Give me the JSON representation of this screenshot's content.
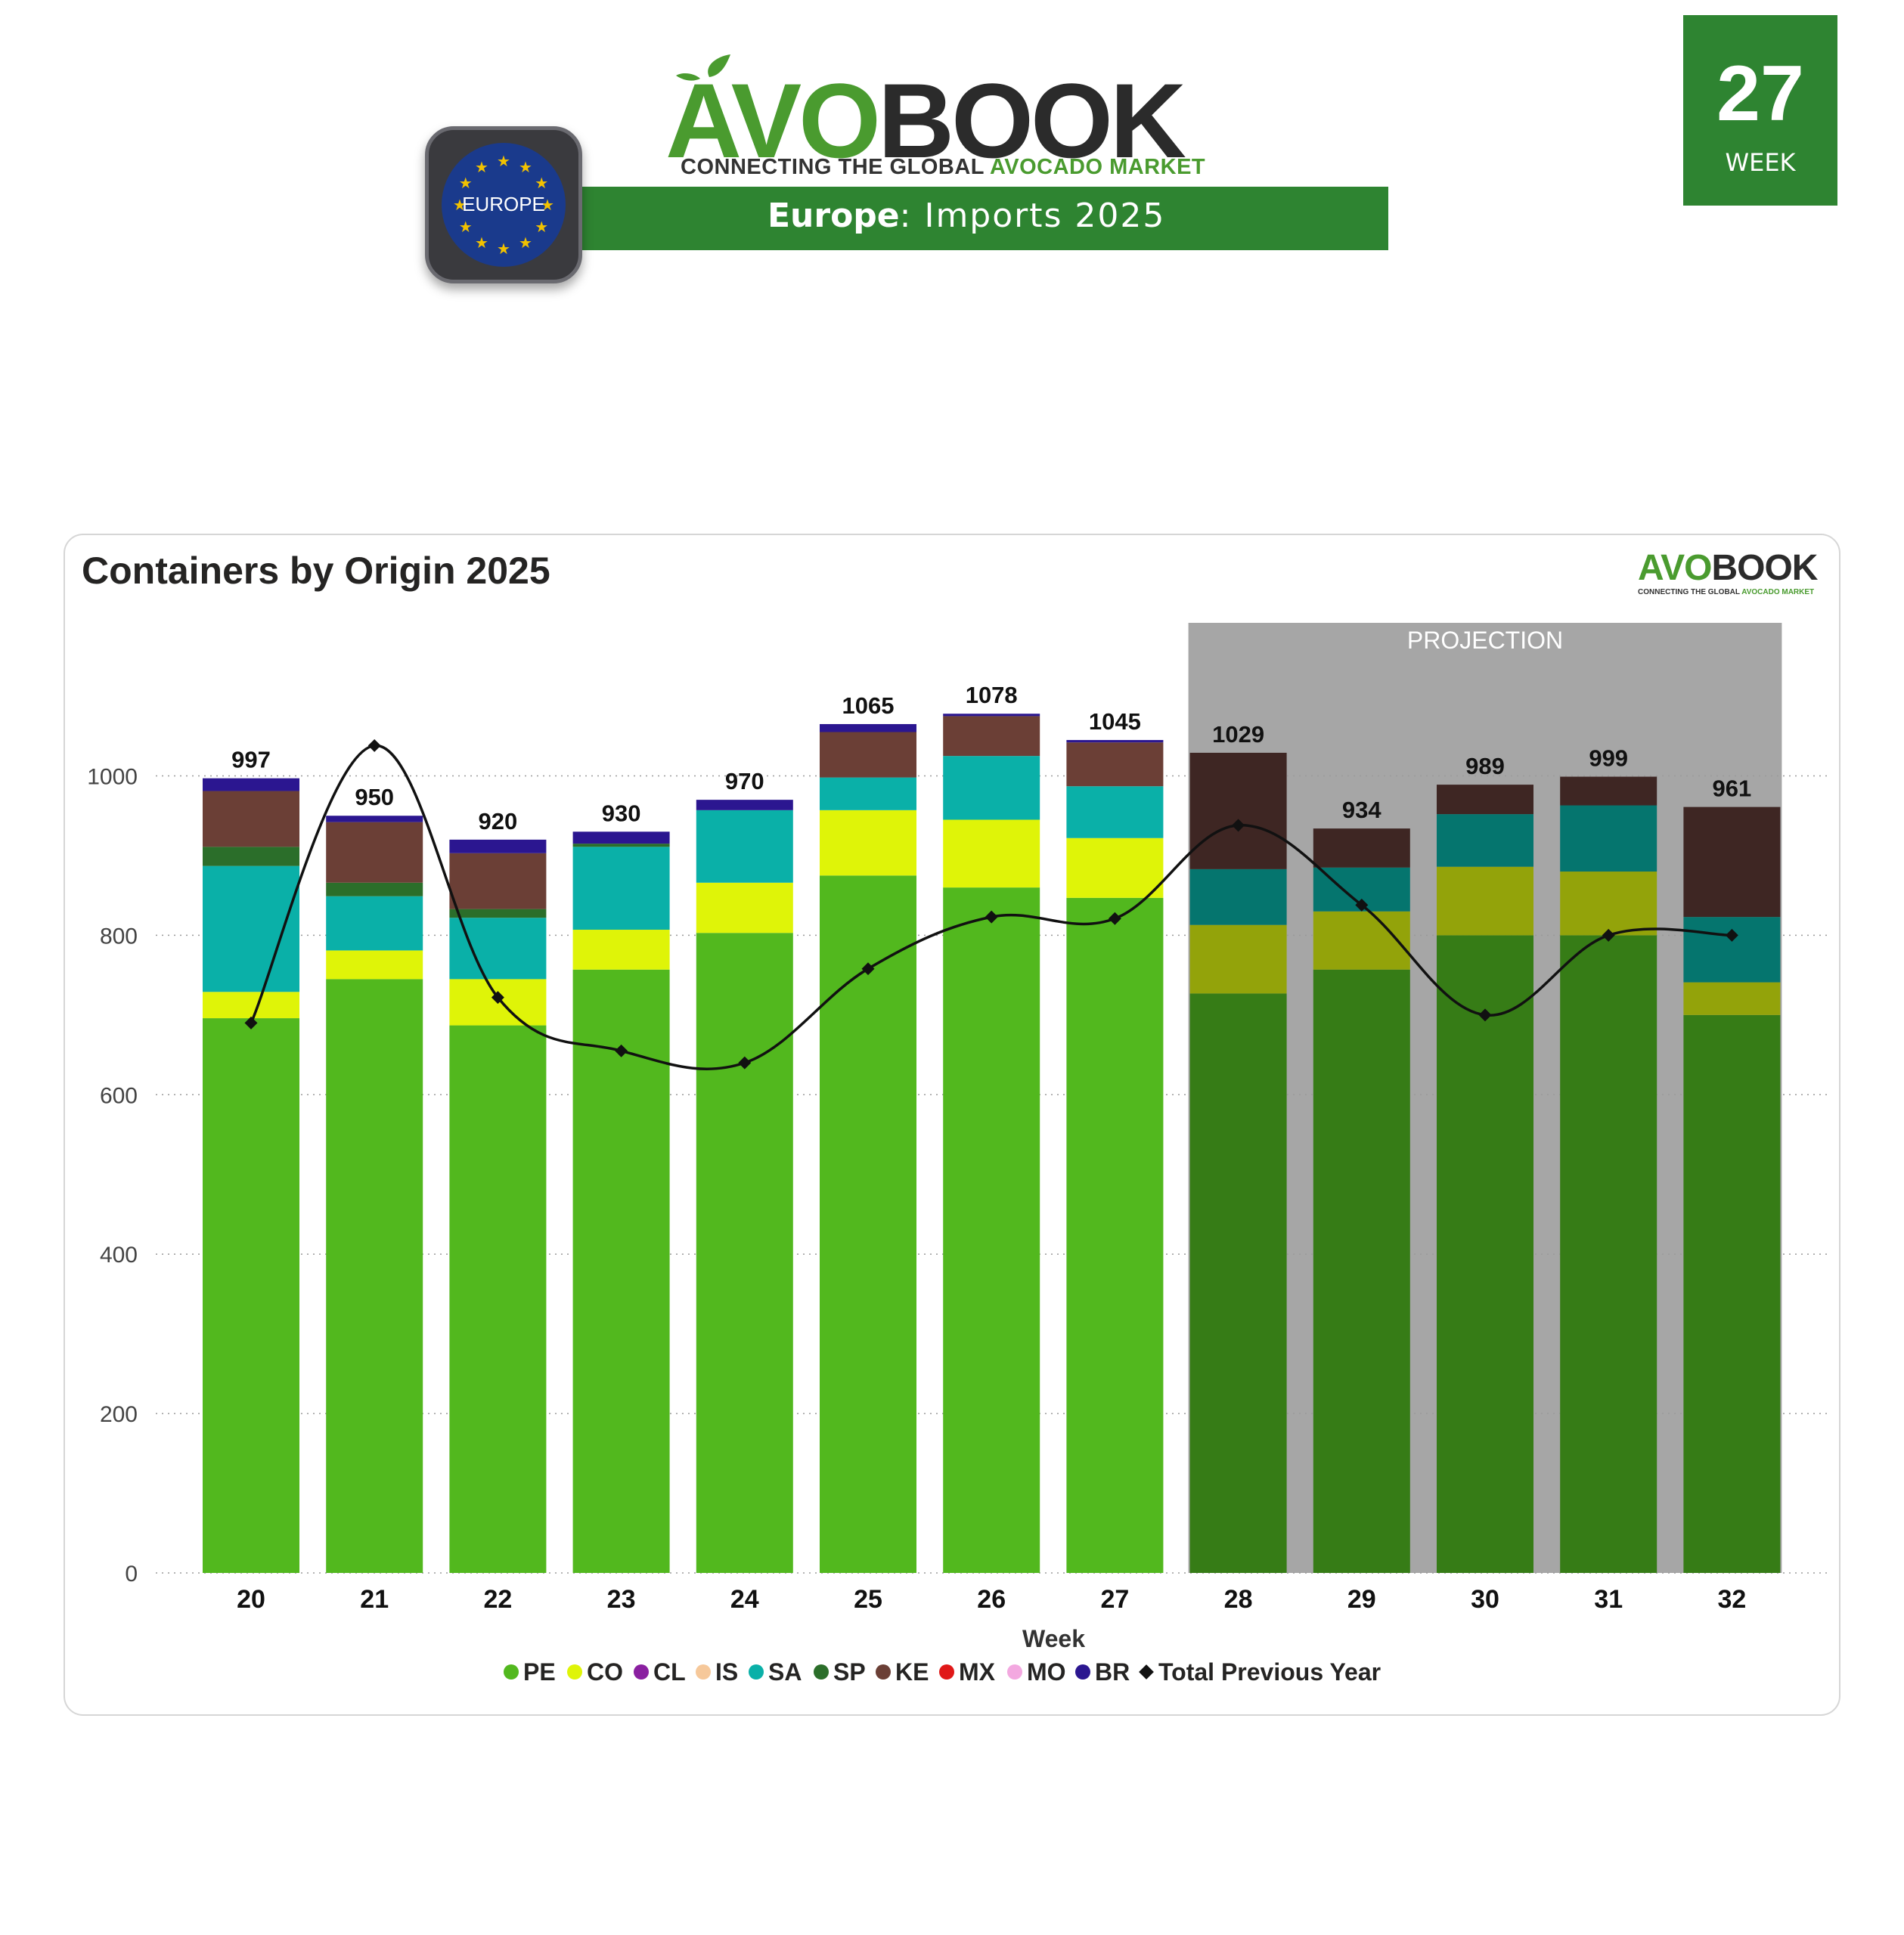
{
  "header": {
    "logo_avo": "AVO",
    "logo_book": "BOOK",
    "tagline_prefix": "CONNECTING THE GLOBAL ",
    "tagline_highlight": "AVOCADO MARKET",
    "region_bold": "Europe",
    "region_rest": ": Imports 2025",
    "badge_label": "EUROPE",
    "week_number": "27",
    "week_label": "WEEK"
  },
  "card": {
    "title": "Containers by Origin 2025",
    "mini_logo_avo": "AVO",
    "mini_logo_book": "BOOK",
    "mini_tagline_prefix": "CONNECTING THE GLOBAL ",
    "mini_tagline_highlight": "AVOCADO MARKET",
    "projection_label": "PROJECTION"
  },
  "colors": {
    "brand_green": "#2e8431",
    "logo_green": "#4a9b2f",
    "projection_bg": "#a6a6a6",
    "PE": "#52b81e",
    "CO": "#dff408",
    "CL": "#8a1fa0",
    "IS": "#f6c89a",
    "SA": "#0ab0a8",
    "SP": "#2b6e2a",
    "KE": "#6b3f36",
    "MX": "#e01818",
    "MO": "#f3a8e0",
    "BR": "#2b1690",
    "PE_proj": "#367c16",
    "CO_proj": "#93a30a",
    "SA_proj": "#05756e",
    "KE_proj": "#3e2623",
    "line": "#111111"
  },
  "chart_data": {
    "type": "bar",
    "stacked": true,
    "title": "Containers by Origin 2025",
    "xlabel": "Week",
    "ylabel": "",
    "ylim": [
      0,
      1200
    ],
    "yticks": [
      0,
      200,
      400,
      600,
      800,
      1000
    ],
    "grid": true,
    "legend_position": "bottom",
    "categories": [
      "20",
      "21",
      "22",
      "23",
      "24",
      "25",
      "26",
      "27",
      "28",
      "29",
      "30",
      "31",
      "32"
    ],
    "projection_categories": [
      "28",
      "29",
      "30",
      "31",
      "32"
    ],
    "series": [
      {
        "name": "PE",
        "values": [
          696,
          745,
          687,
          757,
          803,
          875,
          860,
          847,
          727,
          757,
          800,
          800,
          700
        ]
      },
      {
        "name": "CO",
        "values": [
          33,
          36,
          58,
          50,
          63,
          82,
          85,
          75,
          86,
          73,
          86,
          80,
          41
        ]
      },
      {
        "name": "CL",
        "values": [
          0,
          0,
          0,
          0,
          0,
          0,
          0,
          0,
          0,
          0,
          0,
          0,
          0
        ]
      },
      {
        "name": "IS",
        "values": [
          0,
          0,
          0,
          0,
          0,
          0,
          0,
          0,
          0,
          0,
          0,
          0,
          0
        ]
      },
      {
        "name": "SA",
        "values": [
          158,
          68,
          77,
          104,
          91,
          41,
          80,
          65,
          70,
          55,
          66,
          83,
          82
        ]
      },
      {
        "name": "SP",
        "values": [
          24,
          17,
          11,
          4,
          0,
          0,
          0,
          0,
          0,
          0,
          0,
          0,
          0
        ]
      },
      {
        "name": "KE",
        "values": [
          70,
          76,
          70,
          0,
          0,
          57,
          50,
          55,
          146,
          49,
          37,
          36,
          138
        ]
      },
      {
        "name": "MX",
        "values": [
          0,
          0,
          0,
          0,
          0,
          0,
          0,
          0,
          0,
          0,
          0,
          0,
          0
        ]
      },
      {
        "name": "MO",
        "values": [
          0,
          0,
          0,
          0,
          0,
          0,
          0,
          0,
          0,
          0,
          0,
          0,
          0
        ]
      },
      {
        "name": "BR",
        "values": [
          16,
          8,
          17,
          15,
          13,
          10,
          3,
          3,
          0,
          0,
          0,
          0,
          0
        ]
      }
    ],
    "totals": [
      997,
      950,
      920,
      930,
      970,
      1065,
      1078,
      1045,
      1029,
      934,
      989,
      999,
      961
    ],
    "total_previous_year": {
      "name": "Total Previous Year",
      "values": [
        690,
        1038,
        722,
        655,
        640,
        758,
        823,
        821,
        938,
        838,
        700,
        800,
        800
      ]
    },
    "legend": [
      "PE",
      "CO",
      "CL",
      "IS",
      "SA",
      "SP",
      "KE",
      "MX",
      "MO",
      "BR",
      "Total Previous Year"
    ]
  }
}
